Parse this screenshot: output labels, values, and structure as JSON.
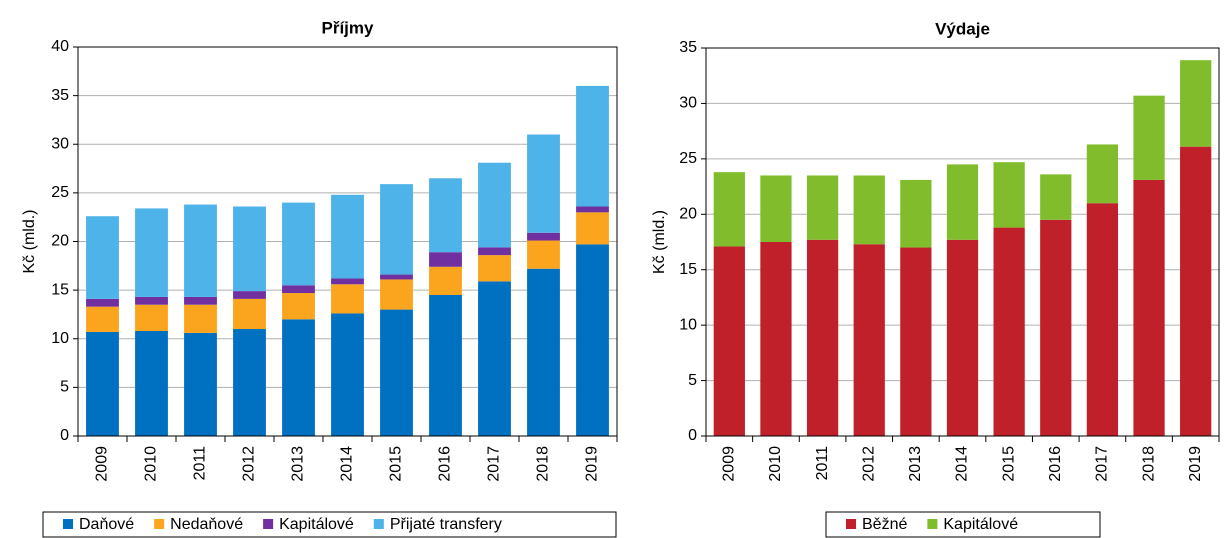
{
  "chart_data": [
    {
      "type": "bar",
      "stacked": true,
      "title": "Příjmy",
      "y_label": "Kč (mld.)",
      "categories": [
        "2009",
        "2010",
        "2011",
        "2012",
        "2013",
        "2014",
        "2015",
        "2016",
        "2017",
        "2018",
        "2019"
      ],
      "series": [
        {
          "name": "Daňové",
          "color": "#0070c0",
          "values": [
            10.7,
            10.8,
            10.6,
            11.0,
            12.0,
            12.6,
            13.0,
            14.5,
            15.9,
            17.2,
            19.7
          ]
        },
        {
          "name": "Nedaňové",
          "color": "#fba51e",
          "values": [
            2.6,
            2.7,
            2.9,
            3.1,
            2.7,
            3.0,
            3.1,
            2.9,
            2.7,
            2.9,
            3.3
          ]
        },
        {
          "name": "Kapitálové",
          "color": "#7030a0",
          "values": [
            0.8,
            0.8,
            0.8,
            0.8,
            0.8,
            0.6,
            0.5,
            1.5,
            0.8,
            0.8,
            0.6
          ]
        },
        {
          "name": "Přijaté transfery",
          "color": "#4eb3e8",
          "values": [
            8.5,
            9.1,
            9.5,
            8.7,
            8.5,
            8.6,
            9.3,
            7.6,
            8.7,
            10.1,
            12.4
          ]
        }
      ],
      "ylim": [
        0,
        40
      ],
      "yticks": [
        0,
        5,
        10,
        15,
        20,
        25,
        30,
        35,
        40
      ],
      "grid": true,
      "legend": "bottom"
    },
    {
      "type": "bar",
      "stacked": true,
      "title": "Výdaje",
      "y_label": "Kč (mld.)",
      "categories": [
        "2009",
        "2010",
        "2011",
        "2012",
        "2013",
        "2014",
        "2015",
        "2016",
        "2017",
        "2018",
        "2019"
      ],
      "series": [
        {
          "name": "Běžné",
          "color": "#c0202a",
          "values": [
            17.1,
            17.5,
            17.7,
            17.3,
            17.0,
            17.7,
            18.8,
            19.5,
            21.0,
            23.1,
            26.1
          ]
        },
        {
          "name": "Kapitálové",
          "color": "#80bc2c",
          "values": [
            6.7,
            6.0,
            5.8,
            6.2,
            6.1,
            6.8,
            5.9,
            4.1,
            5.3,
            7.6,
            7.8
          ]
        }
      ],
      "ylim": [
        0,
        35
      ],
      "yticks": [
        0,
        5,
        10,
        15,
        20,
        25,
        30,
        35
      ],
      "grid": true,
      "legend": "bottom"
    }
  ]
}
